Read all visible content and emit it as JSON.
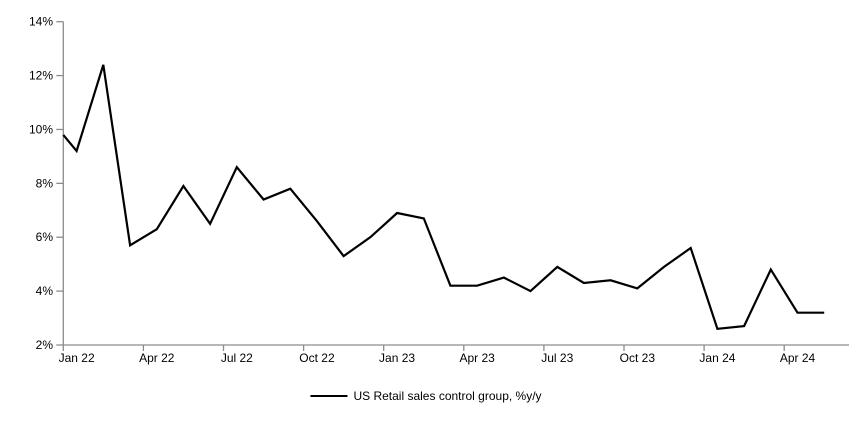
{
  "chart_data": {
    "type": "line",
    "title": "",
    "grid": "off",
    "x_axis": {
      "tick_labels": [
        "Jan 22",
        "Apr 22",
        "Jul 22",
        "Oct 22",
        "Jan 23",
        "Apr 23",
        "Jul 23",
        "Oct 23",
        "Jan 24",
        "Apr 24"
      ],
      "label_every_n_months": 3,
      "mode": "categories-between-ticks"
    },
    "y_axis": {
      "min": 2,
      "max": 14,
      "tick_step": 2,
      "ticks": [
        {
          "value": 14,
          "label": "14%"
        },
        {
          "value": 12,
          "label": "12%"
        },
        {
          "value": 10,
          "label": "10%"
        },
        {
          "value": 8,
          "label": "8%"
        },
        {
          "value": 6,
          "label": "6%"
        },
        {
          "value": 4,
          "label": "4%"
        },
        {
          "value": 2,
          "label": "2%"
        }
      ]
    },
    "legend": {
      "position": "bottom-center",
      "label": "US Retail sales control group, %y/y"
    },
    "line_enters_at_axis_value": 9.8,
    "series": [
      {
        "name": "US Retail sales control group, %y/y",
        "color": "#000000",
        "x": [
          "Jan 22",
          "Feb 22",
          "Mar 22",
          "Apr 22",
          "May 22",
          "Jun 22",
          "Jul 22",
          "Aug 22",
          "Sep 22",
          "Oct 22",
          "Nov 22",
          "Dec 22",
          "Jan 23",
          "Feb 23",
          "Mar 23",
          "Apr 23",
          "May 23",
          "Jun 23",
          "Jul 23",
          "Aug 23",
          "Sep 23",
          "Oct 23",
          "Nov 23",
          "Dec 23",
          "Jan 24",
          "Feb 24",
          "Mar 24",
          "Apr 24",
          "May 24"
        ],
        "values": [
          9.2,
          12.4,
          5.7,
          6.3,
          7.9,
          6.5,
          8.6,
          7.4,
          7.8,
          6.6,
          5.3,
          6.0,
          6.9,
          6.7,
          4.2,
          4.2,
          4.5,
          4.0,
          4.9,
          4.3,
          4.4,
          4.1,
          4.9,
          5.6,
          2.6,
          2.7,
          4.8,
          3.2,
          3.2
        ]
      }
    ],
    "colors": {
      "line": "#000000",
      "axis": "#8c8c8c",
      "text": "#000000"
    }
  }
}
